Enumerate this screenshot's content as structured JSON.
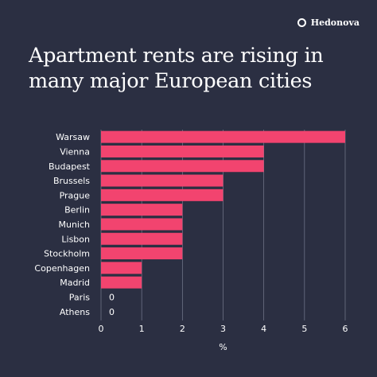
{
  "brand": {
    "name": "Hedonova",
    "icon": "ring-logo-icon"
  },
  "title": "Apartment rents are rising in many major European cities",
  "colors": {
    "background": "#2b2f42",
    "bar": "#f2446f",
    "text": "#ffffff",
    "grid": "#8a8fa3"
  },
  "chart_data": {
    "type": "bar",
    "orientation": "horizontal",
    "categories": [
      "Warsaw",
      "Vienna",
      "Budapest",
      "Brussels",
      "Prague",
      "Berlin",
      "Munich",
      "Lisbon",
      "Stockholm",
      "Copenhagen",
      "Madrid",
      "Paris",
      "Athens"
    ],
    "values": [
      6,
      4,
      4,
      3,
      3,
      2,
      2,
      2,
      2,
      1,
      1,
      0,
      0
    ],
    "zero_labels": [
      "0",
      "0"
    ],
    "xlabel": "%",
    "xlim": [
      0,
      6
    ],
    "xticks": [
      "0",
      "1",
      "2",
      "3",
      "4",
      "5",
      "6"
    ],
    "grid": "vertical"
  }
}
